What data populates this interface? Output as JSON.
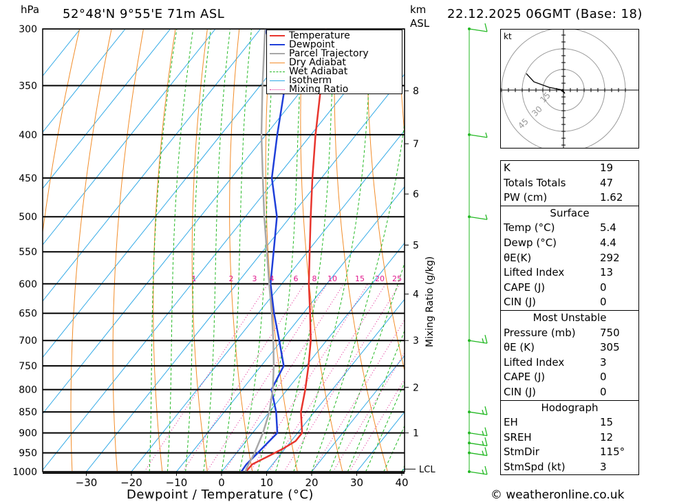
{
  "header": {
    "hpa_unit": "hPa",
    "location": "52°48'N  9°55'E  71m  ASL",
    "km_unit": "km",
    "asl_unit": "ASL",
    "datetime": "22.12.2025  06GMT  (Base: 18)"
  },
  "chart_data": {
    "type": "line",
    "xlabel": "Dewpoint / Temperature (°C)",
    "xlim": [
      -40,
      40
    ],
    "x_ticks": [
      "−30",
      "−20",
      "−10",
      "0",
      "10",
      "20",
      "30",
      "40"
    ],
    "y_ticks_hpa": [
      300,
      350,
      400,
      450,
      500,
      550,
      600,
      650,
      700,
      750,
      800,
      850,
      900,
      950,
      1000
    ],
    "km_ticks": [
      {
        "label": "8",
        "p": 355
      },
      {
        "label": "7",
        "p": 410
      },
      {
        "label": "6",
        "p": 470
      },
      {
        "label": "5",
        "p": 540
      },
      {
        "label": "4",
        "p": 617
      },
      {
        "label": "3",
        "p": 700
      },
      {
        "label": "2",
        "p": 795
      },
      {
        "label": "1",
        "p": 900
      }
    ],
    "lcl": {
      "label": "LCL",
      "p": 993
    },
    "mixing_ratio_title": "Mixing Ratio (g/kg)",
    "mixing_ratio_labels": [
      "1",
      "2",
      "3",
      "4",
      "6",
      "8",
      "10",
      "15",
      "20",
      "25"
    ],
    "series": [
      {
        "name": "Temperature",
        "color": "#e8352d",
        "points": [
          [
            1000,
            5.4
          ],
          [
            980,
            5.5
          ],
          [
            960,
            7.5
          ],
          [
            940,
            9.5
          ],
          [
            920,
            11.0
          ],
          [
            900,
            11.0
          ],
          [
            850,
            7.0
          ],
          [
            800,
            4.0
          ],
          [
            750,
            0.5
          ],
          [
            700,
            -3.5
          ],
          [
            650,
            -8.5
          ],
          [
            600,
            -14.0
          ],
          [
            550,
            -19.5
          ],
          [
            500,
            -25.5
          ],
          [
            450,
            -32.0
          ],
          [
            400,
            -39.0
          ],
          [
            350,
            -46.5
          ],
          [
            300,
            -55.5
          ]
        ]
      },
      {
        "name": "Dewpoint",
        "color": "#1f3fd9",
        "points": [
          [
            1000,
            4.4
          ],
          [
            980,
            4.2
          ],
          [
            950,
            4.7
          ],
          [
            900,
            5.5
          ],
          [
            850,
            1.5
          ],
          [
            800,
            -3.5
          ],
          [
            750,
            -5.0
          ],
          [
            700,
            -10.5
          ],
          [
            650,
            -16.5
          ],
          [
            600,
            -22.5
          ],
          [
            550,
            -27.5
          ],
          [
            500,
            -33.0
          ],
          [
            450,
            -41.0
          ],
          [
            400,
            -47.5
          ],
          [
            350,
            -54.5
          ],
          [
            300,
            -69.0
          ]
        ]
      },
      {
        "name": "Parcel Trajectory",
        "color": "#a8a8a8",
        "points": [
          [
            1000,
            5.4
          ],
          [
            993,
            5.0
          ],
          [
            950,
            4.0
          ],
          [
            900,
            2.3
          ],
          [
            850,
            0.0
          ],
          [
            800,
            -3.2
          ],
          [
            750,
            -7.2
          ],
          [
            700,
            -11.8
          ],
          [
            650,
            -17.0
          ],
          [
            600,
            -22.8
          ],
          [
            550,
            -29.0
          ],
          [
            500,
            -35.8
          ],
          [
            450,
            -43.0
          ],
          [
            400,
            -51.0
          ],
          [
            350,
            -59.5
          ],
          [
            300,
            -69.0
          ]
        ]
      }
    ],
    "legend": [
      "Temperature",
      "Dewpoint",
      "Parcel Trajectory",
      "Dry Adiabat",
      "Wet Adiabat",
      "Isotherm",
      "Mixing Ratio"
    ],
    "legend_placement": "top-right",
    "colors": {
      "temperature": "#e8352d",
      "dewpoint": "#1f3fd9",
      "parcel": "#a8a8a8",
      "dry_adiabat": "#f28c28",
      "wet_adiabat": "#22b822",
      "isotherm": "#2ea8e6",
      "mixing_ratio": "#e0178c",
      "wind": "#22b822"
    },
    "wind_barbs": [
      {
        "p": 1000,
        "speed_kt": 15
      },
      {
        "p": 950,
        "speed_kt": 15
      },
      {
        "p": 925,
        "speed_kt": 15
      },
      {
        "p": 900,
        "speed_kt": 15
      },
      {
        "p": 850,
        "speed_kt": 15
      },
      {
        "p": 700,
        "speed_kt": 15
      },
      {
        "p": 500,
        "speed_kt": 5
      },
      {
        "p": 400,
        "speed_kt": 5
      },
      {
        "p": 300,
        "speed_kt": 10
      }
    ],
    "hodograph": {
      "unit": "kt",
      "ring_labels": [
        "15",
        "30",
        "45"
      ]
    }
  },
  "indices": {
    "top": [
      {
        "k": "K",
        "v": "19"
      },
      {
        "k": "Totals Totals",
        "v": "47"
      },
      {
        "k": "PW (cm)",
        "v": "1.62"
      }
    ],
    "surface": {
      "title": "Surface",
      "rows": [
        {
          "k": "Temp (°C)",
          "v": "5.4"
        },
        {
          "k": "Dewp (°C)",
          "v": "4.4"
        },
        {
          "k": "θE(K)",
          "v": "292"
        },
        {
          "k": "Lifted Index",
          "v": "13"
        },
        {
          "k": "CAPE (J)",
          "v": "0"
        },
        {
          "k": "CIN (J)",
          "v": "0"
        }
      ]
    },
    "most_unstable": {
      "title": "Most Unstable",
      "rows": [
        {
          "k": "Pressure (mb)",
          "v": "750"
        },
        {
          "k": "θE (K)",
          "v": "305"
        },
        {
          "k": "Lifted Index",
          "v": "3"
        },
        {
          "k": "CAPE (J)",
          "v": "0"
        },
        {
          "k": "CIN (J)",
          "v": "0"
        }
      ]
    },
    "hodograph": {
      "title": "Hodograph",
      "rows": [
        {
          "k": "EH",
          "v": "15"
        },
        {
          "k": "SREH",
          "v": "12"
        },
        {
          "k": "StmDir",
          "v": "115°"
        },
        {
          "k": "StmSpd (kt)",
          "v": "3"
        }
      ]
    }
  },
  "footer": {
    "copyright": "© weatheronline.co.uk"
  }
}
